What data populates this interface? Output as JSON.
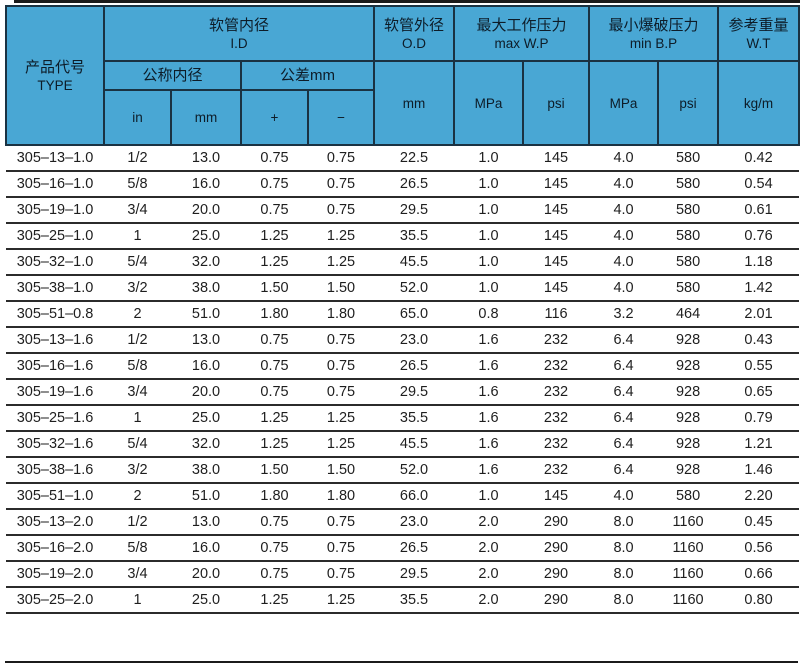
{
  "table": {
    "header": {
      "type_zh": "产品代号",
      "type_en": "TYPE",
      "id_group_zh": "软管内径",
      "id_group_en": "I.D",
      "nominal_zh": "公称内径",
      "tolerance_zh": "公差mm",
      "unit_in": "in",
      "unit_mm": "mm",
      "tol_plus": "+",
      "tol_minus": "−",
      "od_group_zh": "软管外径",
      "od_group_en": "O.D",
      "od_unit": "mm",
      "wp_group_zh": "最大工作压力",
      "wp_group_en": "max W.P",
      "wp_mpa": "MPa",
      "wp_psi": "psi",
      "bp_group_zh": "最小爆破压力",
      "bp_group_en": "min B.P",
      "bp_mpa": "MPa",
      "bp_psi": "psi",
      "wt_group_zh": "参考重量",
      "wt_group_en": "W.T",
      "wt_unit": "kg/m"
    },
    "rows": [
      [
        "305–13–1.0",
        "1/2",
        "13.0",
        "0.75",
        "0.75",
        "22.5",
        "1.0",
        "145",
        "4.0",
        "580",
        "0.42"
      ],
      [
        "305–16–1.0",
        "5/8",
        "16.0",
        "0.75",
        "0.75",
        "26.5",
        "1.0",
        "145",
        "4.0",
        "580",
        "0.54"
      ],
      [
        "305–19–1.0",
        "3/4",
        "20.0",
        "0.75",
        "0.75",
        "29.5",
        "1.0",
        "145",
        "4.0",
        "580",
        "0.61"
      ],
      [
        "305–25–1.0",
        "1",
        "25.0",
        "1.25",
        "1.25",
        "35.5",
        "1.0",
        "145",
        "4.0",
        "580",
        "0.76"
      ],
      [
        "305–32–1.0",
        "5/4",
        "32.0",
        "1.25",
        "1.25",
        "45.5",
        "1.0",
        "145",
        "4.0",
        "580",
        "1.18"
      ],
      [
        "305–38–1.0",
        "3/2",
        "38.0",
        "1.50",
        "1.50",
        "52.0",
        "1.0",
        "145",
        "4.0",
        "580",
        "1.42"
      ],
      [
        "305–51–0.8",
        "2",
        "51.0",
        "1.80",
        "1.80",
        "65.0",
        "0.8",
        "116",
        "3.2",
        "464",
        "2.01"
      ],
      [
        "305–13–1.6",
        "1/2",
        "13.0",
        "0.75",
        "0.75",
        "23.0",
        "1.6",
        "232",
        "6.4",
        "928",
        "0.43"
      ],
      [
        "305–16–1.6",
        "5/8",
        "16.0",
        "0.75",
        "0.75",
        "26.5",
        "1.6",
        "232",
        "6.4",
        "928",
        "0.55"
      ],
      [
        "305–19–1.6",
        "3/4",
        "20.0",
        "0.75",
        "0.75",
        "29.5",
        "1.6",
        "232",
        "6.4",
        "928",
        "0.65"
      ],
      [
        "305–25–1.6",
        "1",
        "25.0",
        "1.25",
        "1.25",
        "35.5",
        "1.6",
        "232",
        "6.4",
        "928",
        "0.79"
      ],
      [
        "305–32–1.6",
        "5/4",
        "32.0",
        "1.25",
        "1.25",
        "45.5",
        "1.6",
        "232",
        "6.4",
        "928",
        "1.21"
      ],
      [
        "305–38–1.6",
        "3/2",
        "38.0",
        "1.50",
        "1.50",
        "52.0",
        "1.6",
        "232",
        "6.4",
        "928",
        "1.46"
      ],
      [
        "305–51–1.0",
        "2",
        "51.0",
        "1.80",
        "1.80",
        "66.0",
        "1.0",
        "145",
        "4.0",
        "580",
        "2.20"
      ],
      [
        "305–13–2.0",
        "1/2",
        "13.0",
        "0.75",
        "0.75",
        "23.0",
        "2.0",
        "290",
        "8.0",
        "1160",
        "0.45"
      ],
      [
        "305–16–2.0",
        "5/8",
        "16.0",
        "0.75",
        "0.75",
        "26.5",
        "2.0",
        "290",
        "8.0",
        "1160",
        "0.56"
      ],
      [
        "305–19–2.0",
        "3/4",
        "20.0",
        "0.75",
        "0.75",
        "29.5",
        "2.0",
        "290",
        "8.0",
        "1160",
        "0.66"
      ],
      [
        "305–25–2.0",
        "1",
        "25.0",
        "1.25",
        "1.25",
        "35.5",
        "2.0",
        "290",
        "8.0",
        "1160",
        "0.80"
      ]
    ]
  },
  "colors": {
    "header_bg": "#49a7d4",
    "header_border": "#1a3242",
    "header_text": "#0d1c28",
    "row_line": "#2b2b2b",
    "body_text": "#1e1e1e",
    "rule": "#1b1b1b"
  }
}
